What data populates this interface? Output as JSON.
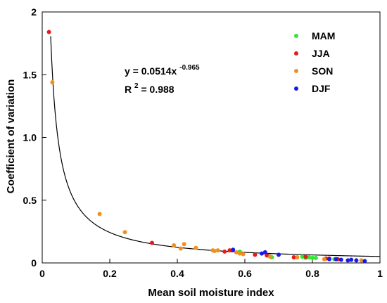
{
  "chart_data": {
    "type": "scatter",
    "xlabel": "Mean soil moisture index",
    "ylabel": "Coefficient of variation",
    "xlim": [
      0,
      1
    ],
    "ylim": [
      0,
      2
    ],
    "x_ticks": [
      "0",
      "0.2",
      "0.4",
      "0.6",
      "0.8",
      "1"
    ],
    "y_ticks": [
      "0",
      "0.5",
      "1.0",
      "1.5",
      "2"
    ],
    "x_tick_values": [
      0,
      0.2,
      0.4,
      0.6,
      0.8,
      1
    ],
    "y_tick_values": [
      0,
      0.5,
      1.0,
      1.5,
      2
    ],
    "grid": false,
    "legend_position": "top-right",
    "annotation": {
      "equation_prefix": "y = 0.0514x",
      "equation_exponent": "-0.965",
      "r2_prefix": "R",
      "r2_sup": "2",
      "r2_suffix": "= 0.988"
    },
    "fit": {
      "a": 0.0514,
      "b": -0.965,
      "x_start": 0.025,
      "x_end": 1.0
    },
    "series": [
      {
        "name": "MAM",
        "color": "#33e633",
        "points": [
          [
            0.585,
            0.09
          ],
          [
            0.672,
            0.055
          ],
          [
            0.68,
            0.045
          ],
          [
            0.77,
            0.05
          ],
          [
            0.78,
            0.04
          ],
          [
            0.79,
            0.045
          ],
          [
            0.8,
            0.04
          ],
          [
            0.81,
            0.04
          ],
          [
            0.865,
            0.03
          ]
        ]
      },
      {
        "name": "JJA",
        "color": "#e61a1a",
        "points": [
          [
            0.02,
            1.84
          ],
          [
            0.325,
            0.16
          ],
          [
            0.54,
            0.09
          ],
          [
            0.555,
            0.1
          ],
          [
            0.63,
            0.065
          ],
          [
            0.665,
            0.06
          ],
          [
            0.745,
            0.045
          ],
          [
            0.78,
            0.05
          ],
          [
            0.84,
            0.035
          ],
          [
            0.85,
            0.035
          ],
          [
            0.875,
            0.03
          ]
        ]
      },
      {
        "name": "SON",
        "color": "#f0901e",
        "points": [
          [
            0.03,
            1.44
          ],
          [
            0.17,
            0.39
          ],
          [
            0.245,
            0.245
          ],
          [
            0.39,
            0.14
          ],
          [
            0.41,
            0.115
          ],
          [
            0.42,
            0.15
          ],
          [
            0.455,
            0.12
          ],
          [
            0.505,
            0.1
          ],
          [
            0.51,
            0.095
          ],
          [
            0.52,
            0.1
          ],
          [
            0.575,
            0.085
          ],
          [
            0.585,
            0.075
          ],
          [
            0.595,
            0.07
          ],
          [
            0.675,
            0.05
          ],
          [
            0.755,
            0.045
          ],
          [
            0.835,
            0.03
          ],
          [
            0.945,
            0.02
          ]
        ]
      },
      {
        "name": "DJF",
        "color": "#1a1ae6",
        "points": [
          [
            0.565,
            0.105
          ],
          [
            0.65,
            0.075
          ],
          [
            0.66,
            0.085
          ],
          [
            0.7,
            0.065
          ],
          [
            0.85,
            0.03
          ],
          [
            0.87,
            0.03
          ],
          [
            0.885,
            0.025
          ],
          [
            0.905,
            0.02
          ],
          [
            0.915,
            0.025
          ],
          [
            0.93,
            0.02
          ],
          [
            0.955,
            0.015
          ]
        ]
      }
    ]
  }
}
